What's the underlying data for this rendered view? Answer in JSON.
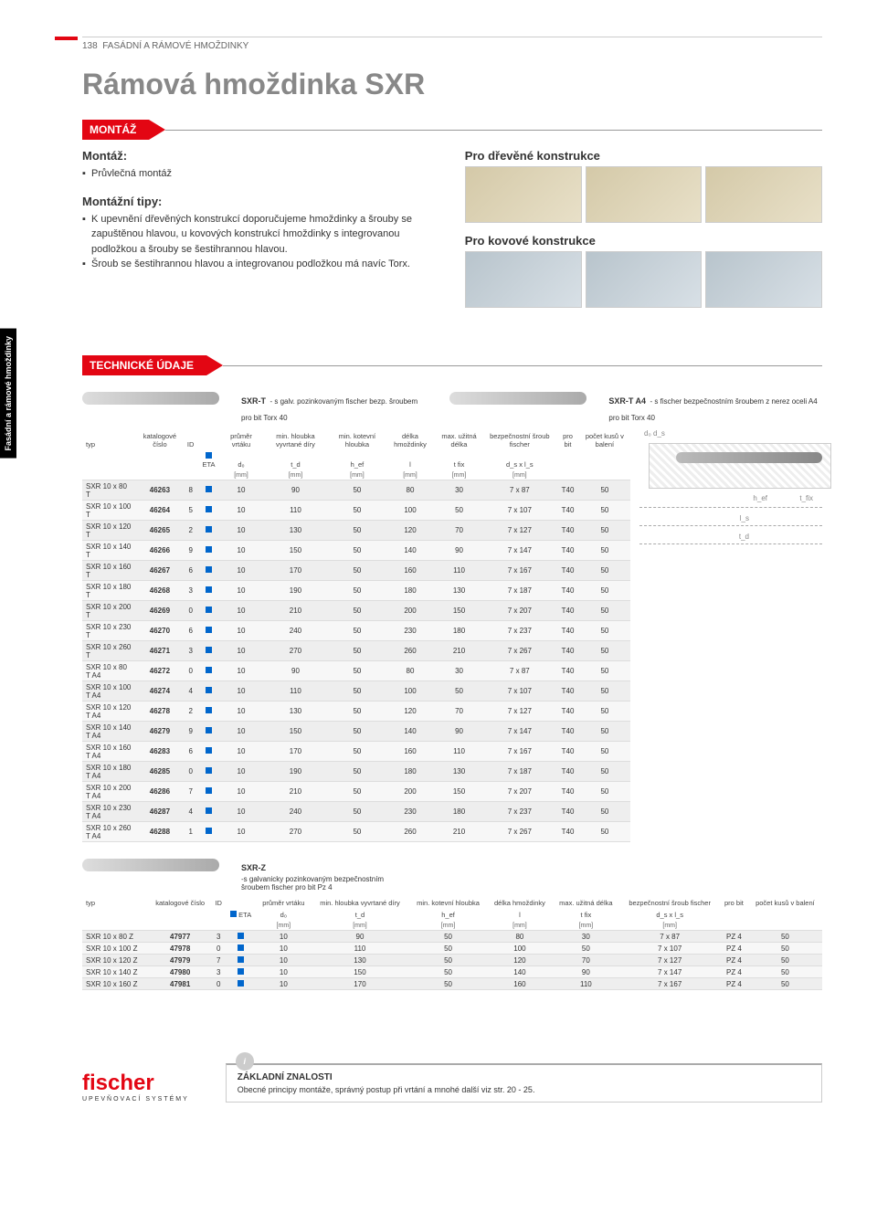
{
  "page_number": "138",
  "page_category": "FASÁDNÍ A RÁMOVÉ HMOŽDINKY",
  "side_tab": "Fasádní a rámové\nhmoždinky",
  "title": "Rámová hmoždinka SXR",
  "section_montaz": "MONTÁŽ",
  "montaz_heading": "Montáž:",
  "montaz_items": [
    "Průvlečná montáž"
  ],
  "tipy_heading": "Montážní tipy:",
  "tipy_items": [
    "K upevnění dřevěných konstrukcí doporučujeme hmoždinky a šrouby se zapuštěnou hlavou, u kovových konstrukcí hmoždinky s integrovanou podložkou a šrouby se šestihrannou hlavou.",
    "Šroub se šestihrannou hlavou a integrovanou podložkou má navíc Torx."
  ],
  "wood_heading": "Pro dřevěné konstrukce",
  "metal_heading": "Pro kovové konstrukce",
  "section_tech": "TECHNICKÉ ÚDAJE",
  "product1_title": "SXR-T",
  "product1_desc": "- s galv. pozinkovaným fischer bezp. šroubem pro bit Torx 40",
  "product1b_title": "SXR-T A4",
  "product1b_desc": "- s fischer bezpečnostním šroubem z nerez oceli A4 pro bit Torx 40",
  "cols": {
    "typ": "typ",
    "kat": "katalogové číslo",
    "id": "ID",
    "eta": "ETA",
    "vrtak": "průměr vrtáku",
    "hloubka": "min. hloubka vyvrtané díry",
    "kotevni": "min. kotevní hloubka",
    "delka": "délka hmoždinky",
    "uzitna": "max. užitná délka",
    "sroub": "bezpečnostní šroub fischer",
    "bit": "pro bit",
    "kusu": "počet kusů v balení"
  },
  "symbols": {
    "d0": "d₀",
    "td": "t_d",
    "hef": "h_ef",
    "l": "l",
    "tfix": "t fix",
    "dsls": "d_s x l_s"
  },
  "unit_mm": "[mm]",
  "table1": [
    [
      "SXR 10 x 80 T",
      "46263",
      "8",
      "10",
      "90",
      "50",
      "80",
      "30",
      "7 x 87",
      "T40",
      "50"
    ],
    [
      "SXR 10 x 100 T",
      "46264",
      "5",
      "10",
      "110",
      "50",
      "100",
      "50",
      "7 x 107",
      "T40",
      "50"
    ],
    [
      "SXR 10 x 120 T",
      "46265",
      "2",
      "10",
      "130",
      "50",
      "120",
      "70",
      "7 x 127",
      "T40",
      "50"
    ],
    [
      "SXR 10 x 140 T",
      "46266",
      "9",
      "10",
      "150",
      "50",
      "140",
      "90",
      "7 x 147",
      "T40",
      "50"
    ],
    [
      "SXR 10 x 160 T",
      "46267",
      "6",
      "10",
      "170",
      "50",
      "160",
      "110",
      "7 x 167",
      "T40",
      "50"
    ],
    [
      "SXR 10 x 180 T",
      "46268",
      "3",
      "10",
      "190",
      "50",
      "180",
      "130",
      "7 x 187",
      "T40",
      "50"
    ],
    [
      "SXR 10 x 200 T",
      "46269",
      "0",
      "10",
      "210",
      "50",
      "200",
      "150",
      "7 x 207",
      "T40",
      "50"
    ],
    [
      "SXR 10 x 230 T",
      "46270",
      "6",
      "10",
      "240",
      "50",
      "230",
      "180",
      "7 x 237",
      "T40",
      "50"
    ],
    [
      "SXR 10 x 260 T",
      "46271",
      "3",
      "10",
      "270",
      "50",
      "260",
      "210",
      "7 x 267",
      "T40",
      "50"
    ],
    [
      "SXR 10 x 80 T A4",
      "46272",
      "0",
      "10",
      "90",
      "50",
      "80",
      "30",
      "7 x 87",
      "T40",
      "50"
    ],
    [
      "SXR 10 x 100 T A4",
      "46274",
      "4",
      "10",
      "110",
      "50",
      "100",
      "50",
      "7 x 107",
      "T40",
      "50"
    ],
    [
      "SXR 10 x 120 T A4",
      "46278",
      "2",
      "10",
      "130",
      "50",
      "120",
      "70",
      "7 x 127",
      "T40",
      "50"
    ],
    [
      "SXR 10 x 140 T A4",
      "46279",
      "9",
      "10",
      "150",
      "50",
      "140",
      "90",
      "7 x 147",
      "T40",
      "50"
    ],
    [
      "SXR 10 x 160 T A4",
      "46283",
      "6",
      "10",
      "170",
      "50",
      "160",
      "110",
      "7 x 167",
      "T40",
      "50"
    ],
    [
      "SXR 10 x 180 T A4",
      "46285",
      "0",
      "10",
      "190",
      "50",
      "180",
      "130",
      "7 x 187",
      "T40",
      "50"
    ],
    [
      "SXR 10 x 200 T A4",
      "46286",
      "7",
      "10",
      "210",
      "50",
      "200",
      "150",
      "7 x 207",
      "T40",
      "50"
    ],
    [
      "SXR 10 x 230 T A4",
      "46287",
      "4",
      "10",
      "240",
      "50",
      "230",
      "180",
      "7 x 237",
      "T40",
      "50"
    ],
    [
      "SXR 10 x 260 T A4",
      "46288",
      "1",
      "10",
      "270",
      "50",
      "260",
      "210",
      "7 x 267",
      "T40",
      "50"
    ]
  ],
  "product2_title": "SXR-Z",
  "product2_desc": "-s galvanicky pozinkovaným bezpečnostním šroubem fischer pro bit Pz 4",
  "table2": [
    [
      "SXR 10 x 80 Z",
      "47977",
      "3",
      "10",
      "90",
      "50",
      "80",
      "30",
      "7 x 87",
      "PZ 4",
      "50"
    ],
    [
      "SXR 10 x 100 Z",
      "47978",
      "0",
      "10",
      "110",
      "50",
      "100",
      "50",
      "7 x 107",
      "PZ 4",
      "50"
    ],
    [
      "SXR 10 x 120 Z",
      "47979",
      "7",
      "10",
      "130",
      "50",
      "120",
      "70",
      "7 x 127",
      "PZ 4",
      "50"
    ],
    [
      "SXR 10 x 140 Z",
      "47980",
      "3",
      "10",
      "150",
      "50",
      "140",
      "90",
      "7 x 147",
      "PZ 4",
      "50"
    ],
    [
      "SXR 10 x 160 Z",
      "47981",
      "0",
      "10",
      "170",
      "50",
      "160",
      "110",
      "7 x 167",
      "PZ 4",
      "50"
    ]
  ],
  "logo": "fischer",
  "logo_sub": "UPEVŇOVACÍ SYSTÉMY",
  "knowledge_title": "ZÁKLADNÍ ZNALOSTI",
  "knowledge_text": "Obecné principy montáže, správný postup při vrtání a mnohé další viz str. 20 - 25.",
  "colors": {
    "brand": "#e30613",
    "eta": "#0066cc"
  }
}
